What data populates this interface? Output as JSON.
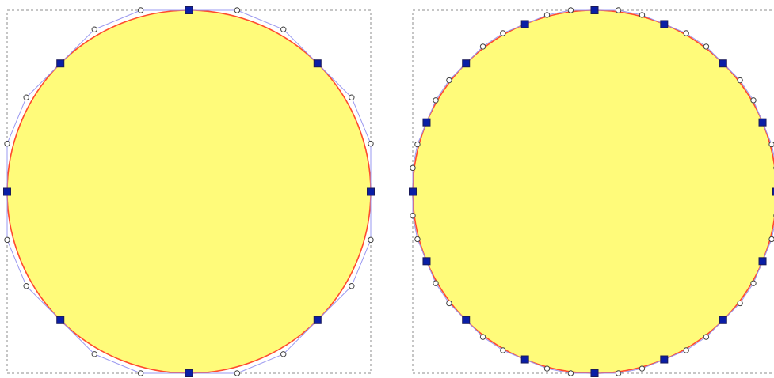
{
  "colors": {
    "background": "#ffffff",
    "bbox_stroke": "#8c8c8c",
    "circle_fill": "#fffb7a",
    "circle_stroke": "#ff4a2e",
    "path_stroke": "#9a98f0",
    "node_fill": "#0a1ea6",
    "node_stroke": "#1a1a5a",
    "handle_fill": "#ffffff",
    "handle_stroke": "#404040"
  },
  "panels": [
    {
      "label": "",
      "nodes": 8
    },
    {
      "label": "",
      "nodes": 16
    }
  ],
  "icons": {
    "node": "square-node-icon",
    "handle": "circle-handle-icon"
  }
}
